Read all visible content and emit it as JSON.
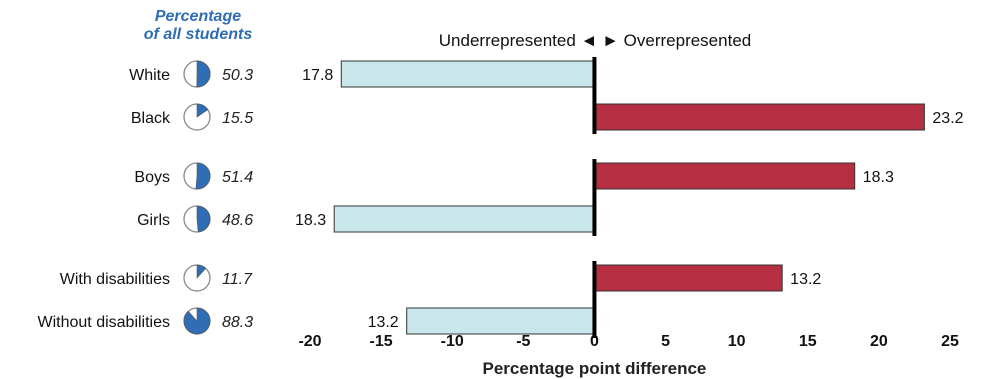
{
  "chart_data": {
    "type": "bar",
    "orientation": "horizontal",
    "share_header": [
      "Percentage",
      "of all students"
    ],
    "direction_header": {
      "left": "Underrepresented",
      "left_arrow": "◄",
      "right_arrow": "►",
      "right": "Overrepresented"
    },
    "xlabel": "Percentage point difference",
    "xlim": [
      -20,
      25
    ],
    "xticks": [
      -20,
      -15,
      -10,
      -5,
      0,
      5,
      10,
      15,
      20,
      25
    ],
    "groups": [
      {
        "rows": [
          {
            "label": "White",
            "share": 50.3,
            "share_label": "50.3",
            "value": -17.8,
            "value_label": "17.8"
          },
          {
            "label": "Black",
            "share": 15.5,
            "share_label": "15.5",
            "value": 23.2,
            "value_label": "23.2"
          }
        ]
      },
      {
        "rows": [
          {
            "label": "Boys",
            "share": 51.4,
            "share_label": "51.4",
            "value": 18.3,
            "value_label": "18.3"
          },
          {
            "label": "Girls",
            "share": 48.6,
            "share_label": "48.6",
            "value": -18.3,
            "value_label": "18.3"
          }
        ]
      },
      {
        "rows": [
          {
            "label": "With disabilities",
            "share": 11.7,
            "share_label": "11.7",
            "value": 13.2,
            "value_label": "13.2"
          },
          {
            "label": "Without disabilities",
            "share": 88.3,
            "share_label": "88.3",
            "value": -13.2,
            "value_label": "13.2"
          }
        ]
      }
    ],
    "colors": {
      "under": "#c9e7ea",
      "over": "#b52e41",
      "pie_fill": "#2f6db5",
      "header": "#2f6db5"
    },
    "grid": false
  }
}
